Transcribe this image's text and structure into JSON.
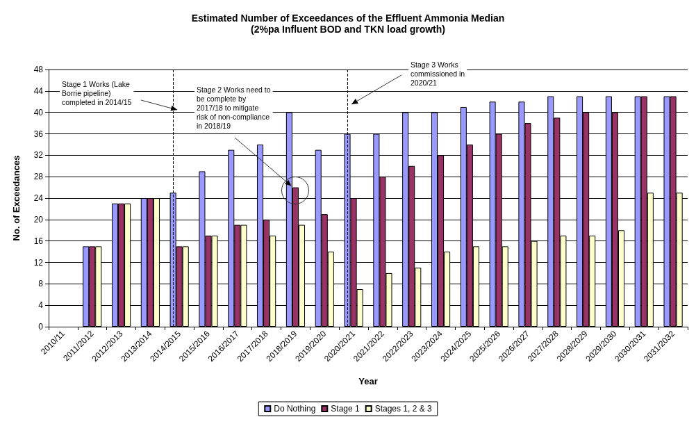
{
  "chart_data": {
    "type": "bar",
    "title": "Estimated Number of Exceedances of the Effluent Ammonia Median",
    "subtitle": "(2%pa Influent BOD and TKN load growth)",
    "xlabel": "Year",
    "ylabel": "No. of Exceedances",
    "categories": [
      "2010/11",
      "2011/2012",
      "2012/2013",
      "2013/2014",
      "2014/2015",
      "2015/2016",
      "2016/2017",
      "2017/2018",
      "2018/2019",
      "2019/2020",
      "2020/2021",
      "2021/2022",
      "2022/2023",
      "2023/2024",
      "2024/2025",
      "2025/2026",
      "2026/2027",
      "2027/2028",
      "2028/2029",
      "2029/2030",
      "2030/2031",
      "2031/2032"
    ],
    "series": [
      {
        "name": "Do Nothing",
        "color": "#9999ff",
        "values": [
          null,
          15,
          23,
          24,
          25,
          29,
          33,
          34,
          40,
          33,
          36,
          36,
          40,
          40,
          41,
          42,
          42,
          43,
          43,
          43,
          43,
          43
        ]
      },
      {
        "name": "Stage 1",
        "color": "#993366",
        "values": [
          null,
          15,
          23,
          24,
          15,
          17,
          19,
          20,
          26,
          21,
          24,
          28,
          30,
          32,
          34,
          36,
          38,
          39,
          40,
          40,
          43,
          43
        ]
      },
      {
        "name": "Stages 1, 2 & 3",
        "color": "#ffffcc",
        "values": [
          null,
          15,
          23,
          24,
          15,
          17,
          19,
          17,
          19,
          14,
          7,
          10,
          11,
          14,
          15,
          15,
          16,
          17,
          17,
          18,
          25,
          25
        ]
      }
    ],
    "ylim": [
      0,
      48
    ],
    "yticks": [
      0,
      4,
      8,
      12,
      16,
      20,
      24,
      28,
      32,
      36,
      40,
      44,
      48
    ],
    "grid": "y",
    "legend": "bottom",
    "ref_lines": [
      {
        "axis": "x",
        "value": "2014/2015",
        "color": "#000000",
        "line_style": "dashed"
      },
      {
        "axis": "x",
        "value": "2020/2021",
        "color": "#000000",
        "line_style": "dashed"
      }
    ],
    "annotations": [
      "Stage 1 Works (Lake\nBorrie pipeline)\ncompleted in 2014/15",
      {
        "text": "Stage 2 Works need to\nbe complete by\n2017/18 to mitigate\nrisk of non-compliance\nin 2018/19",
        "x": "2018/2019",
        "y": 26
      },
      "Stage 3 Works\ncommissioned in\n2020/21"
    ]
  }
}
